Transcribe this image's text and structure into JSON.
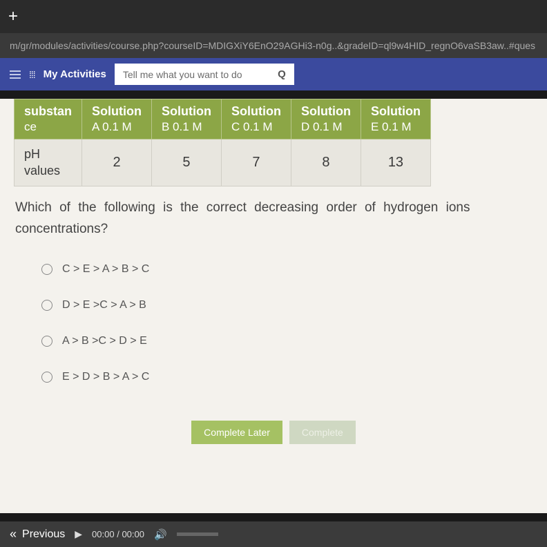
{
  "browser": {
    "url": "m/gr/modules/activities/course.php?courseID=MDIGXiY6EnO29AGHi3-n0g..&gradeID=ql9w4HID_regnO6vaSB3aw..#ques"
  },
  "navbar": {
    "activities_label": "My Activities",
    "search_placeholder": "Tell me what you want to do"
  },
  "table": {
    "row_header": {
      "line1": "substan",
      "line2": "ce"
    },
    "columns": [
      {
        "title": "Solution",
        "sub": "A   0.1 M"
      },
      {
        "title": "Solution",
        "sub": "B   0.1 M"
      },
      {
        "title": "Solution",
        "sub": "C   0.1 M"
      },
      {
        "title": "Solution",
        "sub": "D   0.1 M"
      },
      {
        "title": "Solution",
        "sub": "E   0.1 M"
      }
    ],
    "data_row_header": {
      "line1": "pH",
      "line2": "values"
    },
    "data_values": [
      "2",
      "5",
      "7",
      "8",
      "13"
    ]
  },
  "question": "Which of the following is the correct decreasing order of hydrogen ions concentrations?",
  "options": [
    "C > E > A > B > C",
    "D > E >C > A > B",
    "A > B >C > D > E",
    "E > D > B > A > C"
  ],
  "buttons": {
    "later": "Complete Later",
    "complete": "Complete"
  },
  "footer": {
    "previous": "Previous",
    "time_current": "00:00",
    "time_total": "00:00"
  },
  "colors": {
    "nav_bg": "#3b4a9e",
    "table_header_bg": "#8ca646",
    "content_bg": "#f4f2ed",
    "btn_later_bg": "#a5c163"
  }
}
